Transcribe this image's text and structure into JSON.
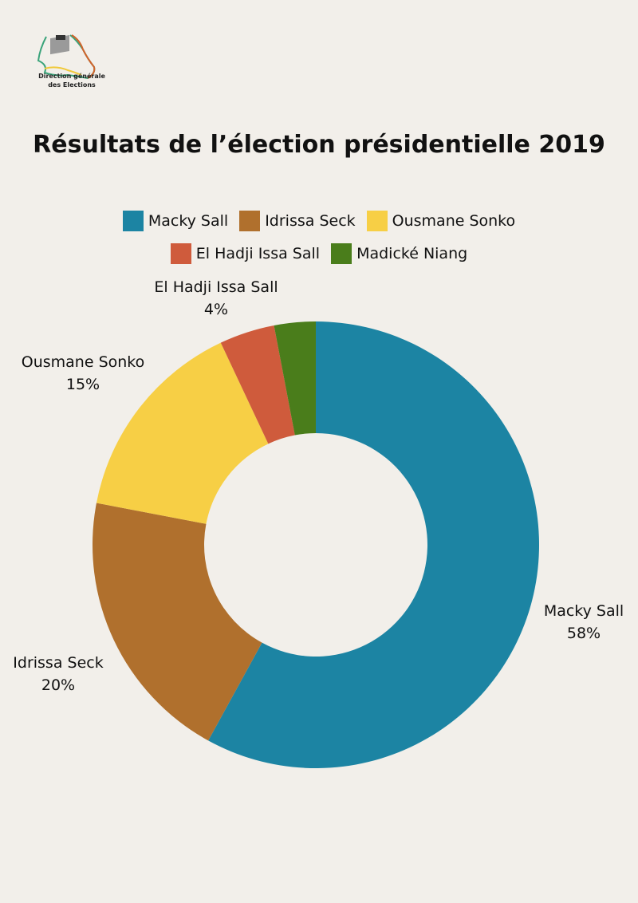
{
  "logo": {
    "text_line1": "Direction générale",
    "text_line2": "des Elections"
  },
  "chart_data": {
    "type": "pie",
    "variant": "donut",
    "title": "Résultats de l’élection présidentielle 2019",
    "categories": [
      "Macky Sall",
      "Idrissa Seck",
      "Ousmane Sonko",
      "El Hadji Issa Sall",
      "Madické Niang"
    ],
    "values": [
      58,
      20,
      15,
      4,
      3
    ],
    "unit": "%",
    "colors": [
      "#1c84a3",
      "#b0702d",
      "#f7cf45",
      "#cf5b3c",
      "#4a7d1b"
    ],
    "data_labels": [
      {
        "name": "Macky Sall",
        "value": "58%"
      },
      {
        "name": "Idrissa Seck",
        "value": "20%"
      },
      {
        "name": "Ousmane Sonko",
        "value": "15%"
      },
      {
        "name": "El Hadji Issa Sall",
        "value": "4%"
      }
    ],
    "legend_placement": "top-center",
    "start_angle": "top, clockwise"
  }
}
